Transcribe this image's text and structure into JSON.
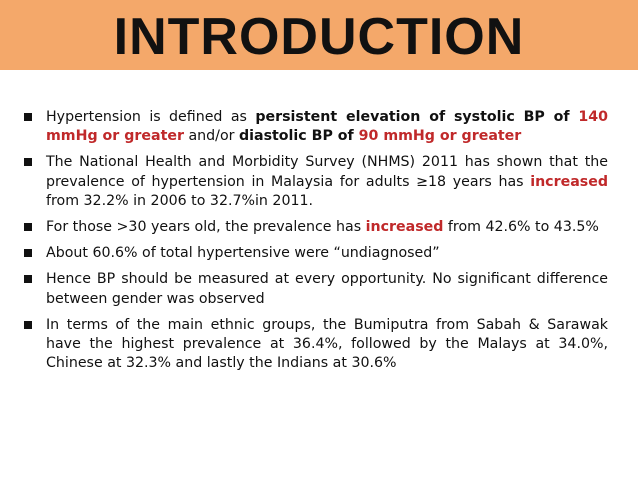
{
  "title": "INTRODUCTION",
  "bullets": [
    {
      "parts": [
        {
          "text": "Hypertension is defined as ",
          "style": "plain"
        },
        {
          "text": "persistent elevation of systolic BP of ",
          "style": "bold"
        },
        {
          "text": "140 mmHg or greater",
          "style": "bold-red"
        },
        {
          "text": " and/or ",
          "style": "plain"
        },
        {
          "text": "diastolic BP of ",
          "style": "bold"
        },
        {
          "text": "90 mmHg or greater",
          "style": "bold-red"
        }
      ]
    },
    {
      "parts": [
        {
          "text": "The National Health and Morbidity Survey (NHMS) 2011 has shown that the prevalence of hypertension in Malaysia for adults ≥18 years has ",
          "style": "plain"
        },
        {
          "text": "increased",
          "style": "bold-red"
        },
        {
          "text": " from 32.2% in 2006 to 32.7%in 2011.",
          "style": "plain"
        }
      ]
    },
    {
      "parts": [
        {
          "text": "For those >30 years old, the prevalence has ",
          "style": "plain"
        },
        {
          "text": "increased",
          "style": "bold-red"
        },
        {
          "text": " from 42.6% to 43.5%",
          "style": "plain"
        }
      ]
    },
    {
      "parts": [
        {
          "text": "About 60.6% of total hypertensive were “undiagnosed”",
          "style": "plain"
        }
      ]
    },
    {
      "parts": [
        {
          "text": "Hence BP should be measured at every opportunity. No significant difference between gender was observed",
          "style": "plain"
        }
      ]
    },
    {
      "parts": [
        {
          "text": "In terms of the main ethnic groups, the Bumiputra from Sabah & Sarawak have the highest prevalence at 36.4%, followed by the Malays at 34.0%, Chinese at 32.3% and lastly the Indians at 30.6%",
          "style": "plain"
        }
      ]
    }
  ],
  "colors": {
    "title_bar": "#f4a86a",
    "highlight": "#c0292a",
    "text": "#111111"
  }
}
